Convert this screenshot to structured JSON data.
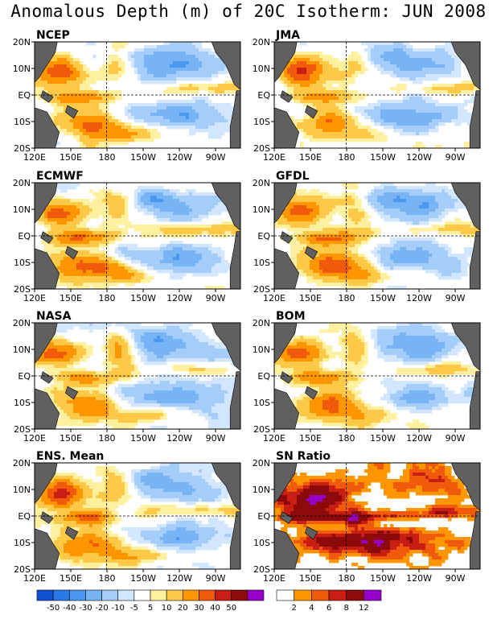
{
  "title": "Anomalous Depth (m) of 20C Isotherm: JUN 2008",
  "chart_data": {
    "type": "heatmap",
    "x_ticks": [
      "120E",
      "150E",
      "180",
      "150W",
      "120W",
      "90W"
    ],
    "y_ticks": [
      "20N",
      "10N",
      "EQ",
      "10S",
      "20S"
    ],
    "panels": [
      {
        "label": "NCEP"
      },
      {
        "label": "JMA"
      },
      {
        "label": "ECMWF"
      },
      {
        "label": "GFDL"
      },
      {
        "label": "NASA"
      },
      {
        "label": "BOM"
      },
      {
        "label": "ENS. Mean"
      },
      {
        "label": "SN Ratio"
      }
    ],
    "anomaly_colorbar": {
      "labels": [
        "-50",
        "-40",
        "-30",
        "-20",
        "-10",
        "-5",
        "5",
        "10",
        "20",
        "30",
        "40",
        "50"
      ],
      "colors": [
        "#1450d2",
        "#2878e6",
        "#4a96f0",
        "#78b4f5",
        "#a5cdfa",
        "#d2e6ff",
        "#ffffff",
        "#fff0a0",
        "#ffc846",
        "#ff9600",
        "#f05a0a",
        "#c81e14",
        "#8c0a0a",
        "#9600c8"
      ]
    },
    "sn_colorbar": {
      "labels": [
        "2",
        "4",
        "6",
        "8",
        "12"
      ],
      "colors": [
        "#ffffff",
        "#ff9600",
        "#f05a0a",
        "#c81e14",
        "#8c0a0a",
        "#9600c8"
      ]
    },
    "land_color": "#606060"
  }
}
